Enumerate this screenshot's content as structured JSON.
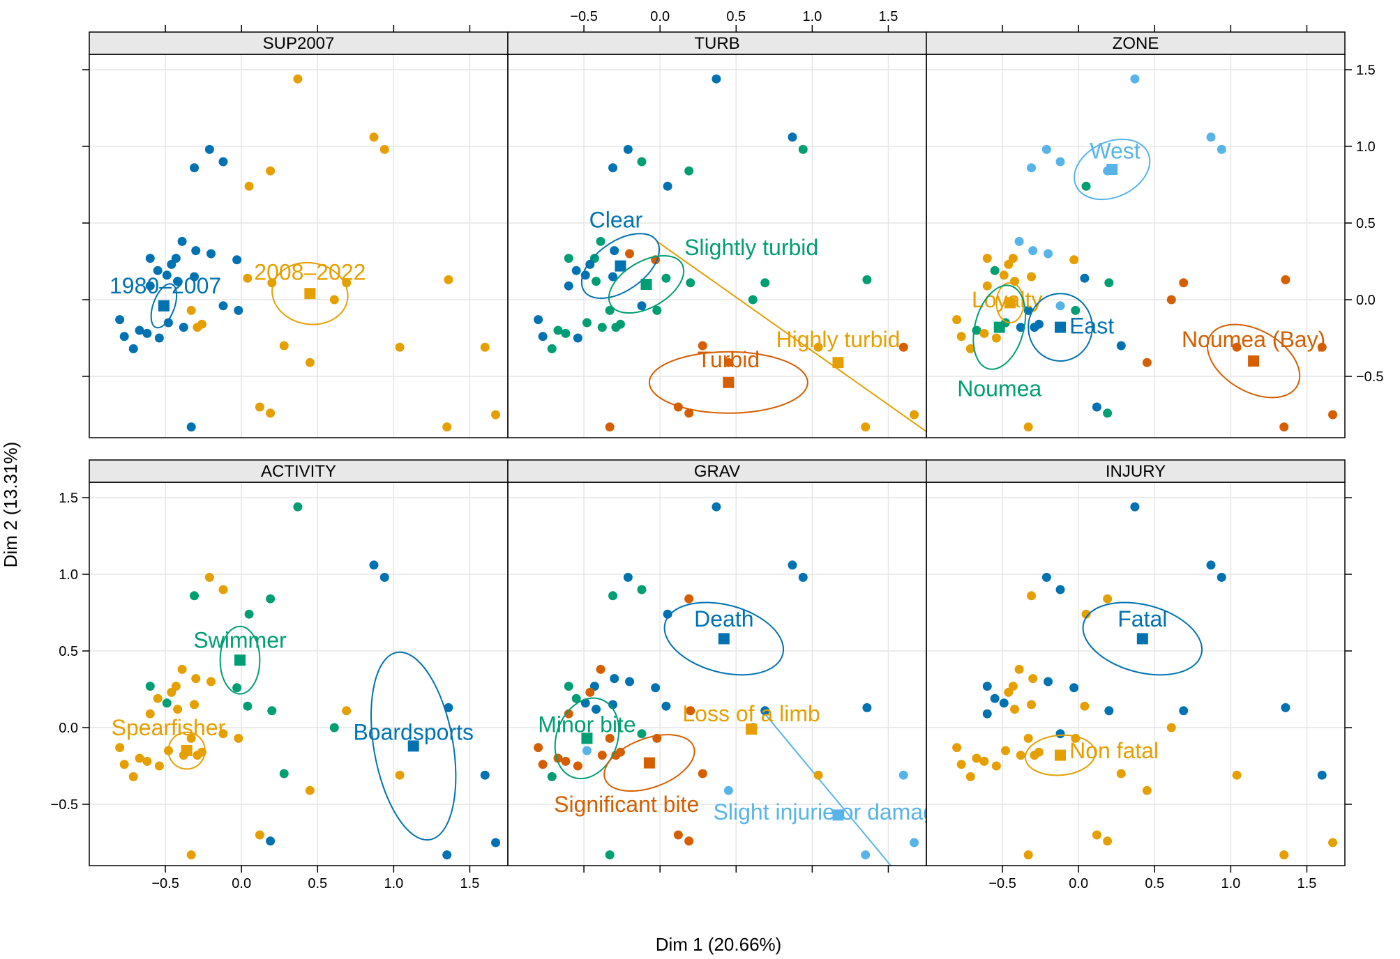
{
  "x_axis_label": "Dim 1 (20.66%)",
  "y_axis_label": "Dim 2 (13.31%)",
  "colors": {
    "blue": "#0072B2",
    "orange": "#E69F00",
    "green": "#009E73",
    "vermillion": "#D55E00",
    "skyblue": "#56B4E9",
    "grid": "#e6e6e6",
    "strip": "#e8e8e8"
  },
  "chart_data": {
    "type": "scatter",
    "xlim": [
      -1.0,
      1.75
    ],
    "ylim": [
      -0.9,
      1.6
    ],
    "x_ticks": [
      -0.5,
      0.0,
      0.5,
      1.0,
      1.5
    ],
    "x_tick_labels": [
      "−0.5",
      "0.0",
      "0.5",
      "1.0",
      "1.5"
    ],
    "y_ticks": [
      -0.5,
      0.0,
      0.5,
      1.0,
      1.5
    ],
    "y_tick_labels": [
      "−0.5",
      "0.0",
      "0.5",
      "1.0",
      "1.5"
    ],
    "x": [
      0.37,
      0.87,
      -0.21,
      -0.12,
      -0.31,
      0.94,
      0.05,
      0.19,
      -0.39,
      -0.3,
      -0.43,
      -0.6,
      -0.2,
      -0.55,
      -0.49,
      -0.42,
      -0.03,
      0.2,
      -0.46,
      -0.31,
      -0.6,
      0.61,
      0.04,
      0.69,
      1.36,
      -0.12,
      -0.02,
      -0.8,
      -0.33,
      -0.67,
      -0.77,
      -0.62,
      -0.38,
      -0.71,
      -0.54,
      -0.26,
      0.28,
      1.04,
      0.45,
      1.6,
      -0.48,
      -0.29,
      0.12,
      0.19,
      -0.33,
      1.35,
      1.67
    ],
    "y": [
      1.44,
      1.06,
      0.98,
      0.9,
      0.86,
      0.98,
      0.74,
      0.84,
      0.38,
      0.32,
      0.27,
      0.27,
      0.3,
      0.19,
      0.16,
      0.12,
      0.26,
      0.11,
      0.23,
      0.15,
      0.09,
      0.0,
      0.14,
      0.11,
      0.13,
      -0.04,
      -0.07,
      -0.13,
      -0.07,
      -0.2,
      -0.24,
      -0.22,
      -0.18,
      -0.32,
      -0.25,
      -0.16,
      -0.3,
      -0.31,
      -0.41,
      -0.31,
      -0.15,
      -0.18,
      -0.7,
      -0.74,
      -0.83,
      -0.83,
      -0.75
    ],
    "panels": [
      {
        "title": "SUP2007",
        "colors": [
          "#0072B2",
          "#E69F00"
        ],
        "membership": [
          1,
          1,
          0,
          0,
          0,
          1,
          1,
          1,
          0,
          0,
          0,
          0,
          0,
          0,
          0,
          0,
          0,
          1,
          0,
          0,
          0,
          1,
          1,
          1,
          1,
          0,
          0,
          0,
          1,
          0,
          0,
          0,
          0,
          0,
          0,
          1,
          1,
          1,
          1,
          1,
          0,
          1,
          1,
          1,
          0,
          1,
          1
        ],
        "categories": [
          {
            "label": "1980–2007",
            "color": "#0072B2",
            "x": -0.51,
            "y": -0.04,
            "rx": 0.07,
            "ry": 0.15,
            "rot": 20,
            "lx": -0.5,
            "ly": 0.09,
            "anchor": "middle"
          },
          {
            "label": "2008–2022",
            "color": "#E69F00",
            "x": 0.45,
            "y": 0.04,
            "rx": 0.25,
            "ry": 0.2,
            "rot": 10,
            "lx": 0.45,
            "ly": 0.18,
            "anchor": "middle"
          }
        ]
      },
      {
        "title": "TURB",
        "colors": [
          "#0072B2",
          "#009E73",
          "#D55E00",
          "#E69F00"
        ],
        "membership": [
          0,
          0,
          0,
          1,
          0,
          1,
          0,
          1,
          1,
          0,
          1,
          1,
          2,
          0,
          0,
          1,
          2,
          1,
          0,
          0,
          0,
          1,
          1,
          1,
          1,
          0,
          1,
          0,
          1,
          1,
          0,
          1,
          1,
          1,
          0,
          1,
          2,
          3,
          2,
          2,
          1,
          1,
          2,
          2,
          2,
          3,
          3
        ],
        "line": {
          "color": "#E69F00",
          "x1": -0.02,
          "y1": 0.38,
          "x2": 1.85,
          "y2": -0.93
        },
        "categories": [
          {
            "label": "Clear",
            "color": "#0072B2",
            "x": -0.26,
            "y": 0.22,
            "rx": 0.29,
            "ry": 0.16,
            "rot": -35,
            "lx": -0.29,
            "ly": 0.52,
            "anchor": "middle"
          },
          {
            "label": "Slightly turbid",
            "color": "#009E73",
            "x": -0.09,
            "y": 0.1,
            "rx": 0.27,
            "ry": 0.15,
            "rot": -30,
            "lx": 0.16,
            "ly": 0.34,
            "anchor": "start"
          },
          {
            "label": "Turbid",
            "color": "#D55E00",
            "x": 0.45,
            "y": -0.54,
            "rx": 0.52,
            "ry": 0.2,
            "rot": 0,
            "lx": 0.45,
            "ly": -0.39,
            "anchor": "middle"
          },
          {
            "label": "Highly turbid",
            "color": "#E69F00",
            "x": 1.17,
            "y": -0.41,
            "rx": 0,
            "ry": 0,
            "rot": 0,
            "lx": 1.17,
            "ly": -0.26,
            "anchor": "middle"
          }
        ]
      },
      {
        "title": "ZONE",
        "colors": [
          "#56B4E9",
          "#009E73",
          "#0072B2",
          "#E69F00",
          "#D55E00"
        ],
        "membership": [
          0,
          0,
          0,
          0,
          0,
          0,
          1,
          0,
          0,
          0,
          3,
          3,
          0,
          1,
          3,
          3,
          3,
          1,
          3,
          3,
          3,
          4,
          2,
          4,
          4,
          0,
          1,
          3,
          2,
          1,
          3,
          3,
          2,
          3,
          3,
          2,
          2,
          4,
          4,
          4,
          1,
          2,
          2,
          1,
          3,
          4,
          4
        ],
        "categories": [
          {
            "label": "West",
            "color": "#56B4E9",
            "x": 0.22,
            "y": 0.85,
            "rx": 0.26,
            "ry": 0.18,
            "rot": -25,
            "lx": 0.24,
            "ly": 0.97,
            "anchor": "middle"
          },
          {
            "label": "Loyalty",
            "color": "#E69F00",
            "x": -0.45,
            "y": -0.02,
            "rx": 0.09,
            "ry": 0.13,
            "rot": 0,
            "lx": -0.47,
            "ly": 0.0,
            "anchor": "middle"
          },
          {
            "label": "Noumea",
            "color": "#009E73",
            "x": -0.52,
            "y": -0.18,
            "rx": 0.16,
            "ry": 0.28,
            "rot": 15,
            "lx": -0.52,
            "ly": -0.58,
            "anchor": "middle"
          },
          {
            "label": "East",
            "color": "#0072B2",
            "x": -0.12,
            "y": -0.18,
            "rx": 0.21,
            "ry": 0.22,
            "rot": 0,
            "lx": -0.06,
            "ly": -0.17,
            "anchor": "start"
          },
          {
            "label": "Noumea (Bay)",
            "color": "#D55E00",
            "x": 1.15,
            "y": -0.4,
            "rx": 0.33,
            "ry": 0.2,
            "rot": 30,
            "lx": 1.15,
            "ly": -0.26,
            "anchor": "middle"
          }
        ]
      },
      {
        "title": "ACTIVITY",
        "colors": [
          "#0072B2",
          "#E69F00",
          "#009E73"
        ],
        "membership": [
          2,
          0,
          1,
          1,
          2,
          0,
          2,
          2,
          1,
          1,
          1,
          2,
          1,
          1,
          2,
          1,
          2,
          2,
          1,
          1,
          1,
          2,
          2,
          1,
          0,
          1,
          1,
          1,
          1,
          1,
          1,
          1,
          1,
          1,
          1,
          1,
          2,
          1,
          1,
          0,
          1,
          1,
          1,
          0,
          1,
          0,
          0
        ],
        "categories": [
          {
            "label": "Swimmer",
            "color": "#009E73",
            "x": -0.01,
            "y": 0.44,
            "rx": 0.13,
            "ry": 0.22,
            "rot": 0,
            "lx": -0.01,
            "ly": 0.57,
            "anchor": "middle"
          },
          {
            "label": "Spearfisher",
            "color": "#E69F00",
            "x": -0.36,
            "y": -0.15,
            "rx": 0.12,
            "ry": 0.12,
            "rot": 0,
            "lx": -0.48,
            "ly": 0.0,
            "anchor": "middle"
          },
          {
            "label": "Boardsports",
            "color": "#0072B2",
            "x": 1.13,
            "y": -0.12,
            "rx": 0.26,
            "ry": 0.62,
            "rot": -10,
            "lx": 1.13,
            "ly": -0.03,
            "anchor": "middle"
          }
        ]
      },
      {
        "title": "GRAV",
        "colors": [
          "#0072B2",
          "#009E73",
          "#D55E00",
          "#E69F00",
          "#56B4E9"
        ],
        "membership": [
          0,
          0,
          0,
          1,
          1,
          0,
          0,
          2,
          2,
          0,
          0,
          1,
          0,
          1,
          0,
          0,
          0,
          2,
          2,
          0,
          2,
          1,
          0,
          0,
          0,
          1,
          2,
          2,
          2,
          2,
          2,
          2,
          2,
          1,
          2,
          2,
          2,
          3,
          4,
          4,
          4,
          2,
          2,
          2,
          1,
          4,
          4
        ],
        "line": {
          "color": "#56B4E9",
          "x1": 0.68,
          "y1": 0.1,
          "x2": 1.6,
          "y2": -1.0
        },
        "categories": [
          {
            "label": "Death",
            "color": "#0072B2",
            "x": 0.42,
            "y": 0.58,
            "rx": 0.4,
            "ry": 0.22,
            "rot": 15,
            "lx": 0.42,
            "ly": 0.71,
            "anchor": "middle"
          },
          {
            "label": "Minor bite",
            "color": "#009E73",
            "x": -0.48,
            "y": -0.07,
            "rx": 0.2,
            "ry": 0.27,
            "rot": 20,
            "lx": -0.48,
            "ly": 0.02,
            "anchor": "middle"
          },
          {
            "label": "Significant bite",
            "color": "#D55E00",
            "x": -0.07,
            "y": -0.23,
            "rx": 0.31,
            "ry": 0.16,
            "rot": -20,
            "lx": -0.22,
            "ly": -0.5,
            "anchor": "middle"
          },
          {
            "label": "Loss of a limb",
            "color": "#E69F00",
            "x": 0.6,
            "y": -0.01,
            "rx": 0,
            "ry": 0,
            "rot": 0,
            "lx": 0.6,
            "ly": 0.09,
            "anchor": "middle"
          },
          {
            "label": "Slight injurie or damage",
            "color": "#56B4E9",
            "x": 1.17,
            "y": -0.57,
            "rx": 0,
            "ry": 0,
            "rot": 0,
            "lx": 0.35,
            "ly": -0.55,
            "anchor": "start"
          }
        ]
      },
      {
        "title": "INJURY",
        "colors": [
          "#0072B2",
          "#E69F00"
        ],
        "membership": [
          0,
          0,
          0,
          0,
          1,
          0,
          1,
          1,
          1,
          1,
          1,
          0,
          0,
          0,
          0,
          1,
          0,
          0,
          1,
          1,
          0,
          1,
          1,
          0,
          0,
          0,
          1,
          1,
          1,
          1,
          1,
          1,
          1,
          1,
          1,
          1,
          1,
          1,
          1,
          0,
          1,
          1,
          1,
          1,
          1,
          1,
          1
        ],
        "categories": [
          {
            "label": "Fatal",
            "color": "#0072B2",
            "x": 0.42,
            "y": 0.58,
            "rx": 0.4,
            "ry": 0.22,
            "rot": 15,
            "lx": 0.42,
            "ly": 0.71,
            "anchor": "middle"
          },
          {
            "label": "Non fatal",
            "color": "#E69F00",
            "x": -0.12,
            "y": -0.18,
            "rx": 0.23,
            "ry": 0.13,
            "rot": -5,
            "lx": -0.06,
            "ly": -0.15,
            "anchor": "start"
          }
        ]
      }
    ]
  }
}
